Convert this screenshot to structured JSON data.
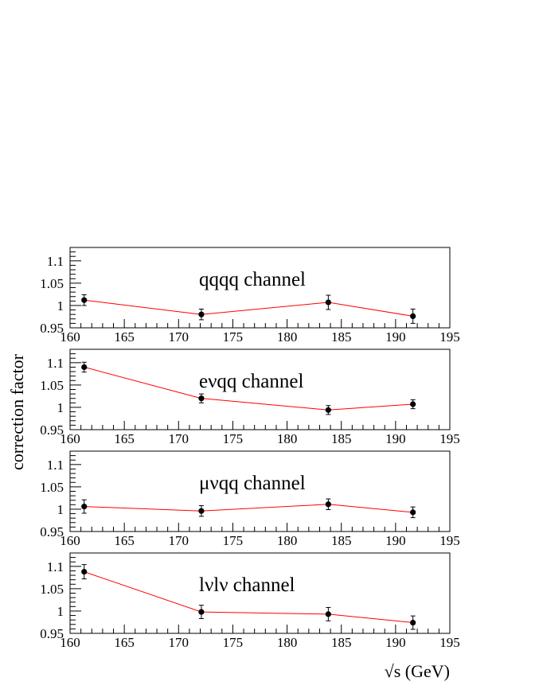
{
  "chart_data": {
    "type": "scatter",
    "ylabel": "correction factor",
    "xlabel": "√s (GeV)",
    "xlim": [
      160,
      195
    ],
    "ylim": [
      0.95,
      1.13
    ],
    "x_ticks": [
      "160",
      "165",
      "170",
      "175",
      "180",
      "185",
      "190",
      "195"
    ],
    "y_ticks": [
      "0.95",
      "1",
      "1.05",
      "1.1"
    ],
    "panels": [
      {
        "label": "qqqq channel",
        "x": [
          161.3,
          172.1,
          183.8,
          191.6
        ],
        "y": [
          1.012,
          0.98,
          1.007,
          0.976
        ],
        "err": [
          0.012,
          0.012,
          0.016,
          0.016
        ]
      },
      {
        "label": "eνqq channel",
        "x": [
          161.3,
          172.1,
          183.8,
          191.6
        ],
        "y": [
          1.09,
          1.02,
          0.994,
          1.007
        ],
        "err": [
          0.011,
          0.01,
          0.01,
          0.01
        ]
      },
      {
        "label": "μνqq channel",
        "x": [
          161.3,
          172.1,
          183.8,
          191.6
        ],
        "y": [
          1.006,
          0.996,
          1.011,
          0.993
        ],
        "err": [
          0.015,
          0.012,
          0.012,
          0.012
        ]
      },
      {
        "label": "lνlν channel",
        "x": [
          161.3,
          172.1,
          183.8,
          191.6
        ],
        "y": [
          1.088,
          0.998,
          0.993,
          0.974
        ],
        "err": [
          0.016,
          0.015,
          0.015,
          0.015
        ]
      }
    ]
  }
}
